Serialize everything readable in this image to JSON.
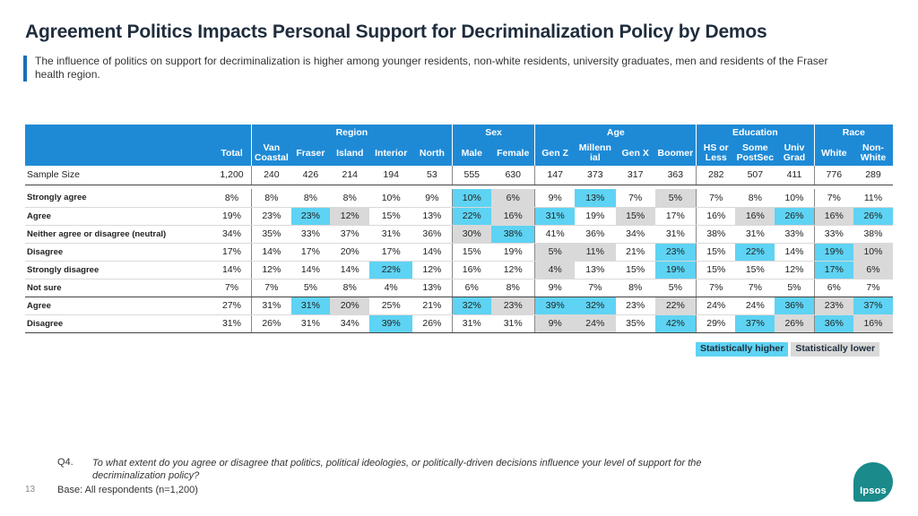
{
  "page": {
    "title": "Agreement Politics Impacts Personal Support for Decriminalization Policy by Demos",
    "subtitle": "The influence of politics on support for decriminalization is higher among younger residents, non-white residents, university graduates, men and residents of the Fraser health region."
  },
  "table": {
    "groups": {
      "region": "Region",
      "sex": "Sex",
      "age": "Age",
      "education": "Education",
      "race": "Race"
    },
    "columns": [
      "Total",
      "Van Coastal",
      "Fraser",
      "Island",
      "Interior",
      "North",
      "Male",
      "Female",
      "Gen Z",
      "Millennial",
      "Gen X",
      "Boomer",
      "HS or Less",
      "Some PostSec",
      "Univ Grad",
      "White",
      "Non-White"
    ],
    "column_display": {
      "total": "Total",
      "van1": "Van",
      "van2": "Coastal",
      "fraser": "Fraser",
      "island": "Island",
      "interior": "Interior",
      "north": "North",
      "male": "Male",
      "female": "Female",
      "genz": "Gen Z",
      "mil1": "Millenn",
      "mil2": "ial",
      "genx": "Gen X",
      "boomer": "Boomer",
      "hs1": "HS or",
      "hs2": "Less",
      "some1": "Some",
      "some2": "PostSec",
      "univ1": "Univ",
      "univ2": "Grad",
      "white": "White",
      "nw1": "Non-",
      "nw2": "White"
    },
    "sample": {
      "label": "Sample Size",
      "values": [
        "1,200",
        "240",
        "426",
        "214",
        "194",
        "53",
        "555",
        "630",
        "147",
        "373",
        "317",
        "363",
        "282",
        "507",
        "411",
        "776",
        "289"
      ]
    },
    "rows": [
      {
        "label": "Strongly agree",
        "values": [
          "8%",
          "8%",
          "8%",
          "8%",
          "10%",
          "9%",
          "10%",
          "6%",
          "9%",
          "13%",
          "7%",
          "5%",
          "7%",
          "8%",
          "10%",
          "7%",
          "11%"
        ]
      },
      {
        "label": "Agree",
        "values": [
          "19%",
          "23%",
          "23%",
          "12%",
          "15%",
          "13%",
          "22%",
          "16%",
          "31%",
          "19%",
          "15%",
          "17%",
          "16%",
          "16%",
          "26%",
          "16%",
          "26%"
        ]
      },
      {
        "label": "Neither agree or disagree (neutral)",
        "values": [
          "34%",
          "35%",
          "33%",
          "37%",
          "31%",
          "36%",
          "30%",
          "38%",
          "41%",
          "36%",
          "34%",
          "31%",
          "38%",
          "31%",
          "33%",
          "33%",
          "38%"
        ]
      },
      {
        "label": "Disagree",
        "values": [
          "17%",
          "14%",
          "17%",
          "20%",
          "17%",
          "14%",
          "15%",
          "19%",
          "5%",
          "11%",
          "21%",
          "23%",
          "15%",
          "22%",
          "14%",
          "19%",
          "10%"
        ]
      },
      {
        "label": "Strongly disagree",
        "values": [
          "14%",
          "12%",
          "14%",
          "14%",
          "22%",
          "12%",
          "16%",
          "12%",
          "4%",
          "13%",
          "15%",
          "19%",
          "15%",
          "15%",
          "12%",
          "17%",
          "6%"
        ]
      },
      {
        "label": "Not sure",
        "values": [
          "7%",
          "7%",
          "5%",
          "8%",
          "4%",
          "13%",
          "6%",
          "8%",
          "9%",
          "7%",
          "8%",
          "5%",
          "7%",
          "7%",
          "5%",
          "6%",
          "7%"
        ]
      },
      {
        "label": "Agree",
        "values": [
          "27%",
          "31%",
          "31%",
          "20%",
          "25%",
          "21%",
          "32%",
          "23%",
          "39%",
          "32%",
          "23%",
          "22%",
          "24%",
          "24%",
          "36%",
          "23%",
          "37%"
        ]
      },
      {
        "label": "Disagree",
        "values": [
          "31%",
          "26%",
          "31%",
          "34%",
          "39%",
          "26%",
          "31%",
          "31%",
          "9%",
          "24%",
          "35%",
          "42%",
          "29%",
          "37%",
          "26%",
          "36%",
          "16%"
        ]
      }
    ]
  },
  "legend": {
    "higher": "Statistically higher",
    "lower": "Statistically lower"
  },
  "colors": {
    "header_blue": "#1e8ad6",
    "higher": "#5ed3f3",
    "lower": "#d9d9d9",
    "accent": "#1a6fb8"
  },
  "footer": {
    "qnum": "Q4.",
    "question": "To what extent do you agree or disagree that politics, political ideologies, or politically-driven decisions influence your level of support for the decriminalization policy?",
    "base": "Base: All respondents (n=1,200)",
    "page_number": "13",
    "logo": "Ipsos"
  }
}
